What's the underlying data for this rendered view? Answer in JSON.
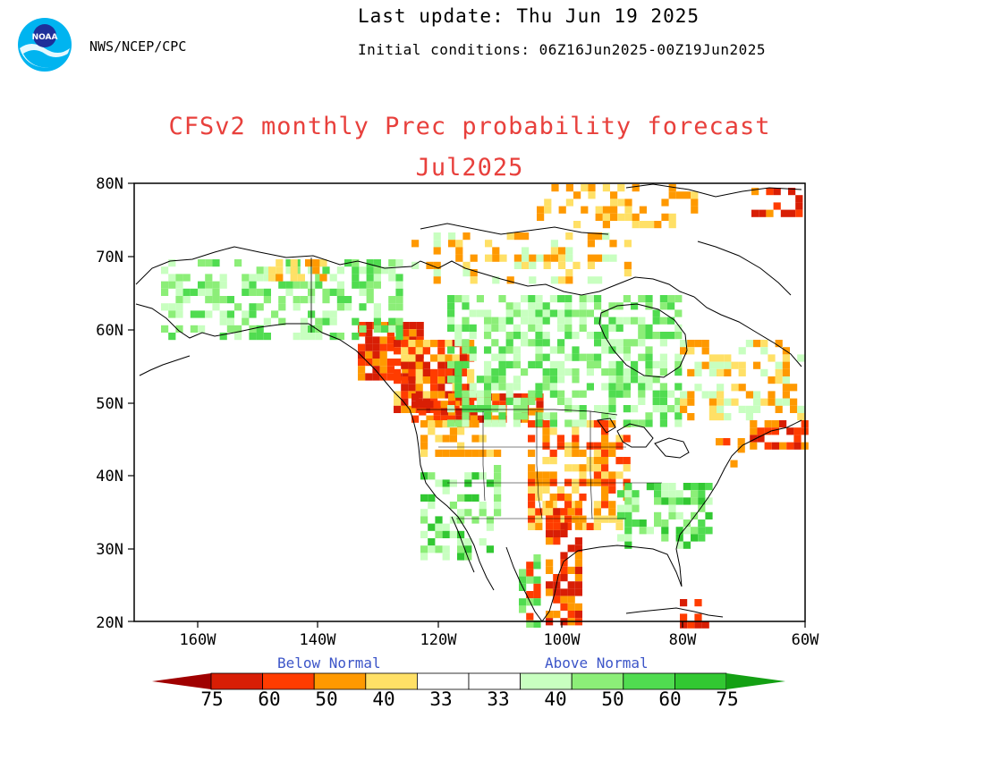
{
  "header": {
    "last_update": "Last update: Thu Jun 19 2025",
    "initial_conditions": "Initial conditions: 06Z16Jun2025-00Z19Jun2025",
    "agency": "NWS/NCEP/CPC",
    "logo_text": "NOAA"
  },
  "title": {
    "line1": "CFSv2 monthly Prec probability forecast",
    "line2": "Jul2025"
  },
  "axes": {
    "y_labels": [
      "80N",
      "70N",
      "60N",
      "50N",
      "40N",
      "30N",
      "20N"
    ],
    "x_labels": [
      "160W",
      "140W",
      "120W",
      "100W",
      "80W",
      "60W"
    ],
    "lat_range": [
      20,
      80
    ],
    "lon_range": [
      -170,
      -60
    ]
  },
  "legend": {
    "below_label": "Below Normal",
    "above_label": "Above Normal",
    "numbers": [
      "75",
      "60",
      "50",
      "40",
      "33",
      "33",
      "40",
      "50",
      "60",
      "75"
    ],
    "below_colors": [
      "#a00000",
      "#d81e05",
      "#ff3c00",
      "#ff9900",
      "#ffe066"
    ],
    "above_colors": [
      "#c8ffc0",
      "#8cee78",
      "#50dc50",
      "#32c832",
      "#14a014"
    ]
  },
  "map": {
    "background": "#ffffff",
    "border_color": "#000000"
  }
}
